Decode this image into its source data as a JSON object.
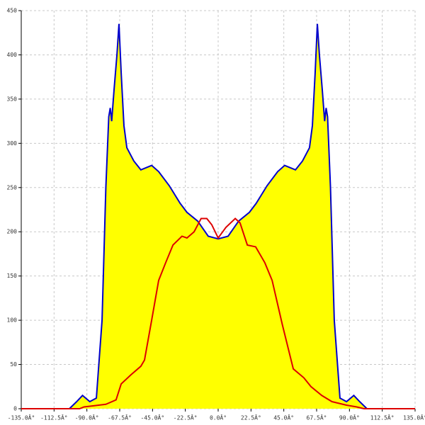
{
  "chart_data": {
    "type": "area",
    "xlim": [
      -135,
      135
    ],
    "ylim": [
      0,
      450
    ],
    "xticks": [
      {
        "value": -135,
        "label": "-135.0Â°"
      },
      {
        "value": -112.5,
        "label": "-112.5Â°"
      },
      {
        "value": -90,
        "label": "-90.0Â°"
      },
      {
        "value": -67.5,
        "label": "-67.5Â°"
      },
      {
        "value": -45,
        "label": "-45.0Â°"
      },
      {
        "value": -22.5,
        "label": "-22.5Â°"
      },
      {
        "value": 0,
        "label": "0.0Â°"
      },
      {
        "value": 22.5,
        "label": "22.5Â°"
      },
      {
        "value": 45,
        "label": "45.0Â°"
      },
      {
        "value": 67.5,
        "label": "67.5Â°"
      },
      {
        "value": 90,
        "label": "90.0Â°"
      },
      {
        "value": 112.5,
        "label": "112.5Â°"
      },
      {
        "value": 135,
        "label": "135.0Â°"
      }
    ],
    "yticks": [
      0,
      50,
      100,
      150,
      200,
      250,
      300,
      350,
      400,
      450
    ],
    "grid": true,
    "series": [
      {
        "color": "#0000cc",
        "fill": "#ffff00",
        "filled": true,
        "x": [
          -102,
          -97,
          -93,
          -88,
          -83.5,
          -79.6,
          -77,
          -75,
          -74,
          -73,
          -71.4,
          -69.4,
          -68,
          -66.5,
          -64.6,
          -62.6,
          -57.8,
          -53,
          -45.6,
          -40.8,
          -33.5,
          -26,
          -21.4,
          -14,
          -6.8,
          0,
          6.8,
          14,
          21.4,
          26,
          33.5,
          40.8,
          45.6,
          53,
          57.8,
          62.6,
          64.6,
          66.5,
          68,
          69.4,
          71.4,
          73,
          74,
          75,
          77,
          79.6,
          83.5,
          88,
          93,
          97,
          102
        ],
        "values": [
          0,
          8,
          15,
          8,
          12,
          100,
          250,
          330,
          340,
          325,
          360,
          400,
          435,
          380,
          320,
          295,
          280,
          270,
          275,
          268,
          252,
          232,
          222,
          212,
          195,
          192,
          195,
          212,
          222,
          232,
          252,
          268,
          275,
          270,
          280,
          295,
          320,
          380,
          435,
          400,
          360,
          325,
          340,
          330,
          250,
          100,
          12,
          8,
          15,
          8,
          0
        ]
      },
      {
        "color": "#dd0000",
        "filled": false,
        "x": [
          -135,
          -95,
          -92,
          -77,
          -70,
          -66.5,
          -60,
          -53,
          -50.5,
          -45.6,
          -40.8,
          -36,
          -31,
          -24.8,
          -21.4,
          -16.5,
          -11.7,
          -7.8,
          -4.4,
          0,
          5.3,
          11.7,
          15,
          20,
          25.7,
          32,
          37,
          44,
          51.5,
          58.7,
          63.6,
          71,
          78,
          88,
          95,
          100,
          135
        ],
        "values": [
          0,
          0,
          2,
          5,
          10,
          28,
          38,
          48,
          55,
          100,
          145,
          165,
          185,
          195,
          193,
          200,
          215,
          215,
          208,
          193,
          205,
          215,
          210,
          185,
          183,
          165,
          145,
          95,
          45,
          35,
          25,
          15,
          8,
          4,
          2,
          0,
          0
        ]
      }
    ]
  }
}
